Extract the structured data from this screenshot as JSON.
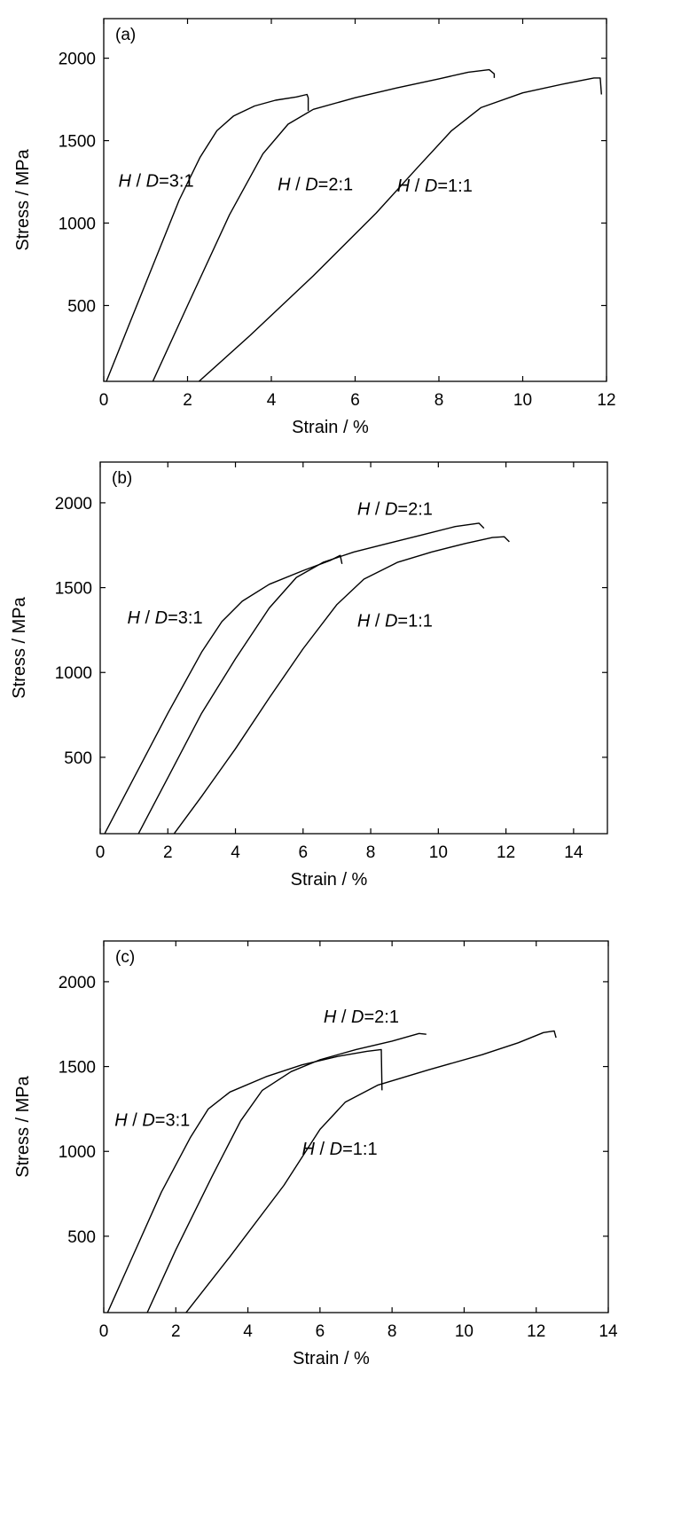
{
  "colors": {
    "line": "#000000",
    "background": "#ffffff"
  },
  "chart_data": [
    {
      "type": "line",
      "panel_label": "(a)",
      "xlabel": "Strain / %",
      "ylabel": "Stress / MPa",
      "xlim": [
        0,
        12
      ],
      "ylim": [
        40,
        2240
      ],
      "xticks": [
        0,
        2,
        4,
        6,
        8,
        10,
        12
      ],
      "yticks": [
        500,
        1000,
        1500,
        2000
      ],
      "xtick_labels": [
        "0",
        "2",
        "4",
        "6",
        "8",
        "10",
        "12"
      ],
      "ytick_labels": [
        "500",
        "1000",
        "1500",
        "2000"
      ],
      "grid": false,
      "series": [
        {
          "label_italic_1": "H",
          "label_mid": " / ",
          "label_italic_2": "D",
          "label_rest": "=3:1",
          "points": [
            [
              0.0,
              0
            ],
            [
              0.6,
              380
            ],
            [
              1.2,
              760
            ],
            [
              1.8,
              1140
            ],
            [
              2.3,
              1400
            ],
            [
              2.7,
              1560
            ],
            [
              3.1,
              1650
            ],
            [
              3.6,
              1710
            ],
            [
              4.1,
              1745
            ],
            [
              4.6,
              1765
            ],
            [
              4.85,
              1780
            ],
            [
              4.88,
              1760
            ],
            [
              4.88,
              1680
            ]
          ],
          "label_at": [
            0.35,
            1220
          ]
        },
        {
          "label_italic_1": "H",
          "label_mid": " / ",
          "label_italic_2": "D",
          "label_rest": "=2:1",
          "points": [
            [
              1.1,
              0
            ],
            [
              2.0,
              500
            ],
            [
              3.0,
              1050
            ],
            [
              3.8,
              1420
            ],
            [
              4.4,
              1600
            ],
            [
              5.0,
              1690
            ],
            [
              6.0,
              1760
            ],
            [
              7.0,
              1820
            ],
            [
              8.0,
              1875
            ],
            [
              8.7,
              1915
            ],
            [
              9.2,
              1930
            ],
            [
              9.32,
              1905
            ],
            [
              9.32,
              1880
            ]
          ],
          "label_at": [
            4.15,
            1200
          ]
        },
        {
          "label_italic_1": "H",
          "label_mid": " / ",
          "label_italic_2": "D",
          "label_rest": "=1:1",
          "points": [
            [
              2.1,
              0
            ],
            [
              3.5,
              320
            ],
            [
              5.0,
              680
            ],
            [
              6.5,
              1060
            ],
            [
              7.5,
              1340
            ],
            [
              8.3,
              1560
            ],
            [
              9.0,
              1700
            ],
            [
              10.0,
              1790
            ],
            [
              11.0,
              1845
            ],
            [
              11.7,
              1880
            ],
            [
              11.85,
              1880
            ],
            [
              11.88,
              1780
            ]
          ],
          "label_at": [
            7.0,
            1190
          ]
        }
      ]
    },
    {
      "type": "line",
      "panel_label": "(b)",
      "xlabel": "Strain / %",
      "ylabel": "Stress / MPa",
      "xlim": [
        0,
        15
      ],
      "ylim": [
        50,
        2240
      ],
      "xticks": [
        0,
        2,
        4,
        6,
        8,
        10,
        12,
        14
      ],
      "yticks": [
        500,
        1000,
        1500,
        2000
      ],
      "xtick_labels": [
        "0",
        "2",
        "4",
        "6",
        "8",
        "10",
        "12",
        "14"
      ],
      "ytick_labels": [
        "500",
        "1000",
        "1500",
        "2000"
      ],
      "grid": false,
      "series": [
        {
          "label_italic_1": "H",
          "label_mid": " / ",
          "label_italic_2": "D",
          "label_rest": "=3:1",
          "points": [
            [
              0.0,
              0
            ],
            [
              1.0,
              380
            ],
            [
              2.0,
              760
            ],
            [
              3.0,
              1120
            ],
            [
              3.6,
              1300
            ],
            [
              4.2,
              1420
            ],
            [
              5.0,
              1520
            ],
            [
              6.0,
              1600
            ],
            [
              6.8,
              1660
            ],
            [
              7.1,
              1690
            ],
            [
              7.15,
              1640
            ]
          ],
          "label_at": [
            0.8,
            1290
          ]
        },
        {
          "label_italic_1": "H",
          "label_mid": " / ",
          "label_italic_2": "D",
          "label_rest": "=2:1",
          "points": [
            [
              1.0,
              0
            ],
            [
              2.0,
              380
            ],
            [
              3.0,
              760
            ],
            [
              4.0,
              1080
            ],
            [
              5.0,
              1380
            ],
            [
              5.8,
              1560
            ],
            [
              6.6,
              1650
            ],
            [
              7.5,
              1710
            ],
            [
              8.5,
              1760
            ],
            [
              9.5,
              1810
            ],
            [
              10.5,
              1860
            ],
            [
              11.2,
              1880
            ],
            [
              11.35,
              1850
            ]
          ],
          "label_at": [
            7.6,
            1930
          ]
        },
        {
          "label_italic_1": "H",
          "label_mid": " / ",
          "label_italic_2": "D",
          "label_rest": "=1:1",
          "points": [
            [
              2.0,
              0
            ],
            [
              3.0,
              270
            ],
            [
              4.0,
              550
            ],
            [
              5.0,
              850
            ],
            [
              6.0,
              1140
            ],
            [
              7.0,
              1400
            ],
            [
              7.8,
              1550
            ],
            [
              8.8,
              1650
            ],
            [
              9.8,
              1710
            ],
            [
              10.8,
              1760
            ],
            [
              11.6,
              1795
            ],
            [
              11.95,
              1800
            ],
            [
              12.1,
              1770
            ]
          ],
          "label_at": [
            7.6,
            1270
          ]
        }
      ]
    },
    {
      "type": "line",
      "panel_label": "(c)",
      "xlabel": "Strain / %",
      "ylabel": "Stress / MPa",
      "xlim": [
        0,
        14
      ],
      "ylim": [
        50,
        2240
      ],
      "xticks": [
        0,
        2,
        4,
        6,
        8,
        10,
        12,
        14
      ],
      "yticks": [
        500,
        1000,
        1500,
        2000
      ],
      "xtick_labels": [
        "0",
        "2",
        "4",
        "6",
        "8",
        "10",
        "12",
        "14"
      ],
      "ytick_labels": [
        "500",
        "1000",
        "1500",
        "2000"
      ],
      "grid": false,
      "series": [
        {
          "label_italic_1": "H",
          "label_mid": " / ",
          "label_italic_2": "D",
          "label_rest": "=3:1",
          "points": [
            [
              0.0,
              0
            ],
            [
              0.8,
              380
            ],
            [
              1.6,
              760
            ],
            [
              2.4,
              1080
            ],
            [
              2.9,
              1250
            ],
            [
              3.5,
              1350
            ],
            [
              4.5,
              1440
            ],
            [
              5.5,
              1510
            ],
            [
              6.5,
              1560
            ],
            [
              7.3,
              1590
            ],
            [
              7.7,
              1600
            ],
            [
              7.72,
              1360
            ]
          ],
          "label_at": [
            0.3,
            1150
          ]
        },
        {
          "label_italic_1": "H",
          "label_mid": " / ",
          "label_italic_2": "D",
          "label_rest": "=2:1",
          "points": [
            [
              1.1,
              0
            ],
            [
              2.0,
              420
            ],
            [
              3.0,
              850
            ],
            [
              3.8,
              1180
            ],
            [
              4.4,
              1360
            ],
            [
              5.2,
              1470
            ],
            [
              6.0,
              1540
            ],
            [
              7.0,
              1600
            ],
            [
              8.0,
              1650
            ],
            [
              8.75,
              1695
            ],
            [
              8.95,
              1690
            ]
          ],
          "label_at": [
            6.1,
            1760
          ]
        },
        {
          "label_italic_1": "H",
          "label_mid": " / ",
          "label_italic_2": "D",
          "label_rest": "=1:1",
          "points": [
            [
              2.1,
              0
            ],
            [
              3.5,
              380
            ],
            [
              5.0,
              800
            ],
            [
              6.0,
              1130
            ],
            [
              6.7,
              1290
            ],
            [
              7.6,
              1390
            ],
            [
              9.0,
              1480
            ],
            [
              10.5,
              1570
            ],
            [
              11.5,
              1640
            ],
            [
              12.2,
              1700
            ],
            [
              12.5,
              1710
            ],
            [
              12.55,
              1670
            ]
          ],
          "label_at": [
            5.5,
            980
          ]
        }
      ]
    }
  ]
}
